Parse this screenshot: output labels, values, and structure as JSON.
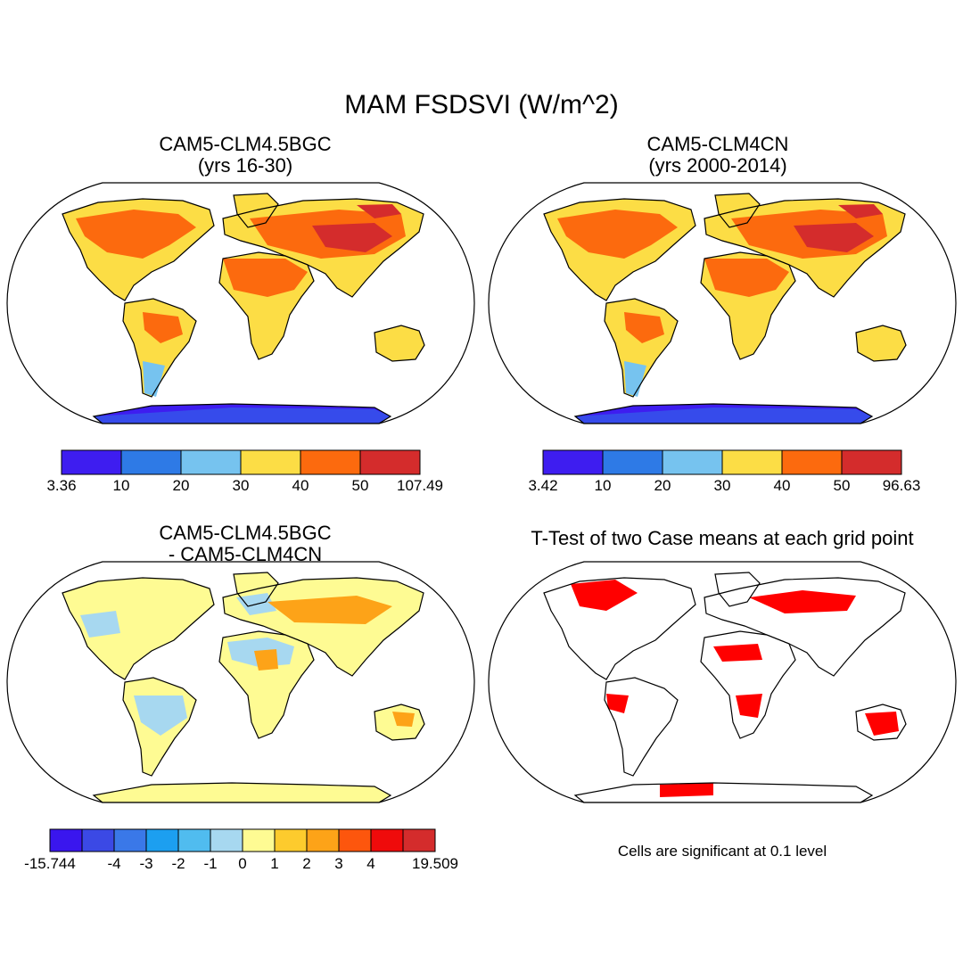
{
  "title": "MAM FSDSVI (W/m^2)",
  "panels": [
    {
      "id": "a",
      "title": "CAM5-CLM4.5BGC\n(yrs 16-30)"
    },
    {
      "id": "b",
      "title": "CAM5-CLM4CN\n(yrs 2000-2014)"
    },
    {
      "id": "c",
      "title": "CAM5-CLM4.5BGC\n- CAM5-CLM4CN"
    },
    {
      "id": "d",
      "title": "T-Test of two Case means at each grid point"
    }
  ],
  "colorbars": {
    "a": {
      "colors": [
        "#3e1df0",
        "#2e7ae6",
        "#76c3ef",
        "#fcdd45",
        "#fc6a0e",
        "#d42c2c"
      ],
      "labels": [
        "3.36",
        "10",
        "20",
        "30",
        "40",
        "50",
        "107.49"
      ]
    },
    "b": {
      "colors": [
        "#3e1df0",
        "#2e7ae6",
        "#76c3ef",
        "#fcdd45",
        "#fc6a0e",
        "#d42c2c"
      ],
      "labels": [
        "3.42",
        "10",
        "20",
        "30",
        "40",
        "50",
        "96.63"
      ]
    },
    "c": {
      "colors": [
        "#3a16ee",
        "#3b49e5",
        "#3a78e8",
        "#1c9ff0",
        "#50bcef",
        "#a7d8f0",
        "#fefb93",
        "#fdcb2d",
        "#fda318",
        "#fd560d",
        "#ef0b0b",
        "#d42c2c"
      ],
      "labels": [
        "-15.744",
        "-4",
        "-3",
        "-2",
        "-1",
        "0",
        "1",
        "2",
        "3",
        "4",
        "19.509"
      ],
      "label_boundaries": [
        0,
        2,
        3,
        4,
        5,
        6,
        7,
        8,
        9,
        10,
        12
      ]
    }
  },
  "significance_note": "Cells are significant at 0.1 level",
  "significance_color": "#ff0000",
  "land_colors": {
    "a": {
      "main": "#fcdd45",
      "hot": "#fc6a0e",
      "hottest": "#d42c2c",
      "cold": "#76c3ef",
      "antarctica": "#3e1df0"
    },
    "c": {
      "main": "#fefb93",
      "pos": "#fda318",
      "neg": "#a7d8f0",
      "antarctica": "#fefb93"
    }
  }
}
